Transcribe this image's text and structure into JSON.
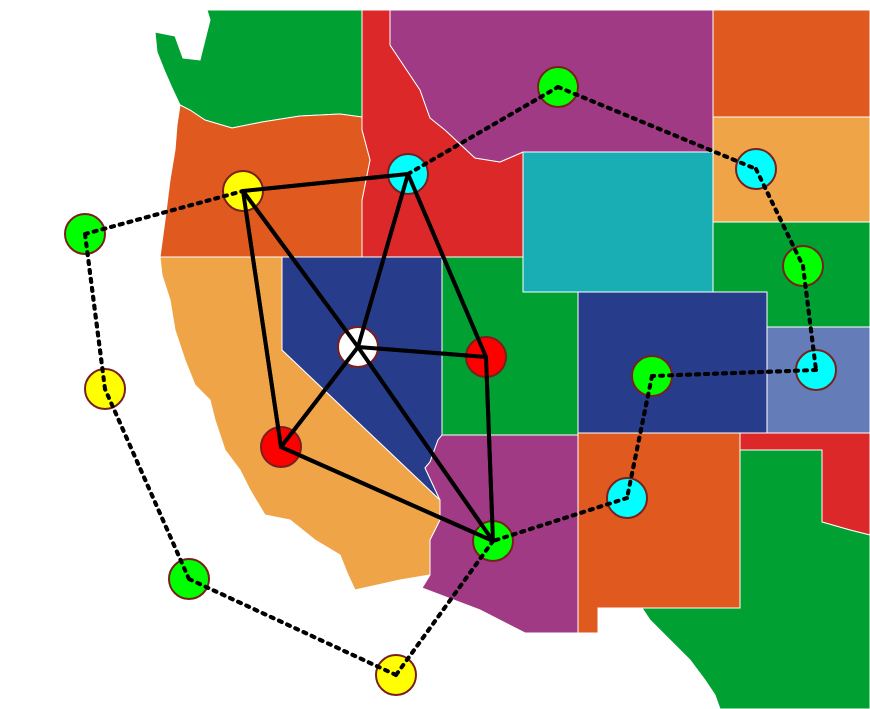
{
  "colors": {
    "background": "#ffffff",
    "green_region": "#00a032",
    "purple_region": "#a03a84",
    "orange_region": "#e05a20",
    "light_orange_region": "#f0a448",
    "red_region": "#dc2828",
    "teal_region": "#18aeb4",
    "navy_region": "#283c8c",
    "slate_region": "#647cb8",
    "edge": "#000000",
    "node_outline": "#7a1f1f"
  },
  "map": {
    "regions": [
      {
        "name": "washington",
        "color": "green"
      },
      {
        "name": "idaho",
        "color": "red"
      },
      {
        "name": "montana",
        "color": "purple"
      },
      {
        "name": "north-dakota",
        "color": "orange"
      },
      {
        "name": "oregon",
        "color": "orange"
      },
      {
        "name": "wyoming",
        "color": "teal"
      },
      {
        "name": "south-dakota",
        "color": "light-orange"
      },
      {
        "name": "nebraska",
        "color": "green"
      },
      {
        "name": "california",
        "color": "light-orange"
      },
      {
        "name": "nevada",
        "color": "navy"
      },
      {
        "name": "utah",
        "color": "green"
      },
      {
        "name": "colorado",
        "color": "navy"
      },
      {
        "name": "kansas",
        "color": "slate"
      },
      {
        "name": "arizona",
        "color": "purple"
      },
      {
        "name": "new-mexico",
        "color": "orange"
      },
      {
        "name": "oklahoma",
        "color": "red"
      },
      {
        "name": "texas",
        "color": "green"
      }
    ],
    "nodes": [
      {
        "id": "oregon-node",
        "color": "#ffff00"
      },
      {
        "id": "idaho-node",
        "color": "#00ffff"
      },
      {
        "id": "nevada-node",
        "color": "#ffffff"
      },
      {
        "id": "utah-node",
        "color": "#ff0000"
      },
      {
        "id": "california-node",
        "color": "#ff0000"
      },
      {
        "id": "arizona-node",
        "color": "#00ff00"
      },
      {
        "id": "montana-node",
        "color": "#00ff00"
      },
      {
        "id": "south-dakota-node",
        "color": "#00ffff"
      },
      {
        "id": "nebraska-node",
        "color": "#00ff00"
      },
      {
        "id": "kansas-node",
        "color": "#00ffff"
      },
      {
        "id": "colorado-node",
        "color": "#00ff00"
      },
      {
        "id": "new-mexico-node",
        "color": "#00ffff"
      },
      {
        "id": "pacific-north-node",
        "color": "#00ff00"
      },
      {
        "id": "pacific-mid-node",
        "color": "#ffff00"
      },
      {
        "id": "pacific-south-node",
        "color": "#00ff00"
      },
      {
        "id": "mexico-node",
        "color": "#ffff00"
      }
    ],
    "solid_edges": [
      [
        "oregon-node",
        "idaho-node"
      ],
      [
        "oregon-node",
        "nevada-node"
      ],
      [
        "oregon-node",
        "california-node"
      ],
      [
        "idaho-node",
        "nevada-node"
      ],
      [
        "idaho-node",
        "utah-node"
      ],
      [
        "nevada-node",
        "utah-node"
      ],
      [
        "nevada-node",
        "california-node"
      ],
      [
        "nevada-node",
        "arizona-node"
      ],
      [
        "utah-node",
        "arizona-node"
      ],
      [
        "california-node",
        "arizona-node"
      ]
    ],
    "dotted_edges": [
      [
        "pacific-north-node",
        "oregon-node"
      ],
      [
        "idaho-node",
        "montana-node"
      ],
      [
        "montana-node",
        "south-dakota-node"
      ],
      [
        "south-dakota-node",
        "nebraska-node"
      ],
      [
        "nebraska-node",
        "kansas-node"
      ],
      [
        "kansas-node",
        "colorado-node"
      ],
      [
        "colorado-node",
        "new-mexico-node"
      ],
      [
        "new-mexico-node",
        "arizona-node"
      ],
      [
        "arizona-node",
        "mexico-node"
      ],
      [
        "mexico-node",
        "pacific-south-node"
      ],
      [
        "pacific-south-node",
        "pacific-mid-node"
      ],
      [
        "pacific-mid-node",
        "pacific-north-node"
      ]
    ]
  }
}
